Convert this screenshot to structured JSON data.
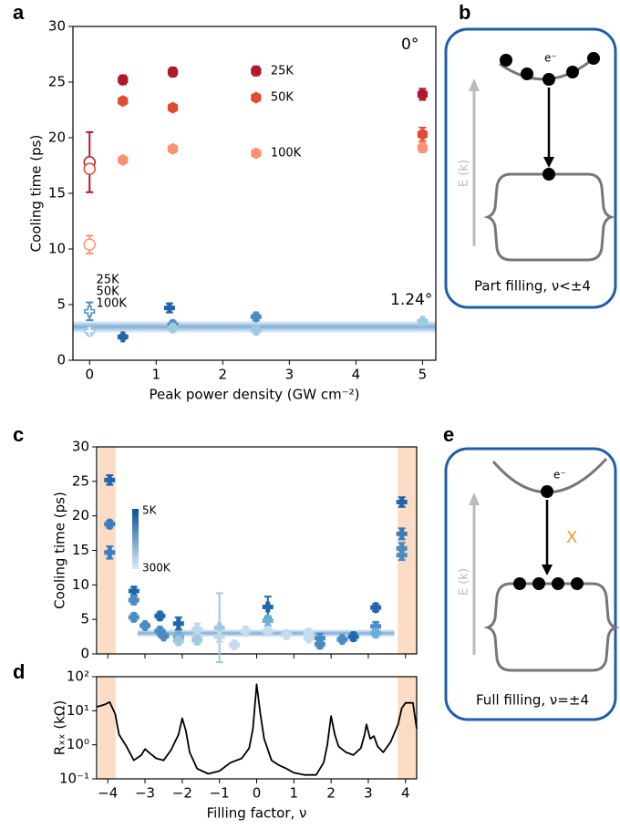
{
  "chart_data": [
    {
      "type": "scatter",
      "panel_label": "a",
      "xlabel": "Peak power density (GW cm⁻²)",
      "ylabel": "Cooling time (ps)",
      "xlim": [
        -0.25,
        5.2
      ],
      "ylim": [
        0,
        30
      ],
      "xticks": [
        0,
        1,
        2,
        3,
        4,
        5
      ],
      "yticks": [
        0,
        5,
        10,
        15,
        20,
        25,
        30
      ],
      "annotations": [
        {
          "text": "0°",
          "color": "#b2182b"
        },
        {
          "text": "1.24°",
          "color": "#2166ac"
        }
      ],
      "band": {
        "range": [
          2.4,
          3.6
        ],
        "color": "#6a9fd0"
      },
      "series": [
        {
          "name": "25K",
          "color": "#b2182b",
          "marker": "hexagon",
          "x": [
            0,
            0.5,
            1.25,
            2.5,
            5
          ],
          "values": [
            17.8,
            25.2,
            25.9,
            26.0,
            23.9
          ],
          "errors": [
            2.7,
            0.4,
            0.4,
            0.4,
            0.5
          ],
          "hollow": [
            true,
            false,
            false,
            false,
            false
          ]
        },
        {
          "name": "50K",
          "color": "#e34a33",
          "marker": "hexagon",
          "x": [
            0,
            0.5,
            1.25,
            2.5,
            5
          ],
          "values": [
            17.2,
            23.3,
            22.7,
            23.6,
            20.3
          ],
          "errors": [
            0.4,
            0.3,
            0.3,
            0.3,
            0.6
          ],
          "hollow": [
            true,
            false,
            false,
            false,
            false
          ]
        },
        {
          "name": "100K",
          "color": "#fc9272",
          "marker": "hexagon",
          "x": [
            0,
            0.5,
            1.25,
            2.5,
            5
          ],
          "values": [
            10.4,
            18.0,
            19.0,
            18.6,
            19.1
          ],
          "errors": [
            0.8,
            0.3,
            0.3,
            0.3,
            0.4
          ],
          "hollow": [
            true,
            false,
            false,
            false,
            false
          ]
        },
        {
          "name": "25K",
          "color": "#2166ac",
          "marker": "plus",
          "x": [
            0.5,
            1.2
          ],
          "values": [
            2.1,
            4.7
          ],
          "errors": [
            0.2,
            0.4
          ],
          "hollow": [
            false,
            false
          ]
        },
        {
          "name": "50K",
          "color": "#4a8bc4",
          "marker": "plus",
          "x": [
            0,
            1.25,
            2.5
          ],
          "values": [
            4.4,
            3.2,
            3.9
          ],
          "errors": [
            0.8,
            0.3,
            0.3
          ],
          "hollow": [
            true,
            false,
            false
          ]
        },
        {
          "name": "100K",
          "color": "#9ecae1",
          "marker": "plus",
          "x": [
            0,
            1.25,
            2.5,
            5
          ],
          "values": [
            2.6,
            2.9,
            2.7,
            3.5
          ],
          "errors": [
            0.3,
            0.3,
            0.3,
            0.2
          ],
          "hollow": [
            true,
            false,
            false,
            false
          ]
        }
      ]
    },
    {
      "type": "scatter",
      "panel_label": "c",
      "ylabel": "Cooling time (ps)",
      "xlim": [
        -4.3,
        4.3
      ],
      "ylim": [
        0,
        30
      ],
      "xticks": [
        -4,
        -3,
        -2,
        -1,
        0,
        1,
        2,
        3,
        4
      ],
      "show_xtick_labels": false,
      "yticks": [
        0,
        5,
        10,
        15,
        20,
        25,
        30
      ],
      "shaded_regions": [
        [
          -4.25,
          -3.79
        ],
        [
          3.79,
          4.29
        ]
      ],
      "shade_color": "#fcdcc4",
      "band": {
        "range": [
          2.4,
          3.6
        ],
        "x": [
          -3.2,
          3.7
        ],
        "color": "#6a9fd0"
      },
      "colorbar": {
        "labels": [
          "5K",
          "300K"
        ],
        "colors": [
          "#08519c",
          "#deebf7"
        ]
      },
      "series": [
        {
          "marker": "plus",
          "x": [
            -3.95,
            -3.95,
            -3.95,
            -3.3,
            -3.3,
            -3.3,
            -3.0,
            -2.6,
            -2.6,
            -2.5,
            -2.1,
            -2.1,
            -2.1,
            -1.6,
            -1.6,
            -1.6,
            -1.0,
            -1.0,
            -0.6,
            -0.3,
            0.3,
            0.3,
            0.3,
            0.8,
            1.4,
            1.4,
            1.7,
            1.7,
            2.3,
            2.6,
            3.2,
            3.2,
            3.2,
            3.9,
            3.9,
            3.9,
            3.9
          ],
          "values": [
            25.2,
            18.8,
            14.7,
            9.1,
            7.8,
            5.3,
            4.1,
            5.5,
            3.3,
            2.6,
            4.4,
            2.5,
            1.9,
            3.6,
            2.6,
            2.0,
            3.8,
            2.5,
            1.3,
            3.3,
            6.8,
            4.8,
            3.3,
            2.8,
            3.0,
            2.3,
            2.3,
            1.4,
            2.1,
            2.5,
            6.7,
            4.0,
            3.0,
            22.0,
            17.4,
            15.3,
            14.3
          ],
          "errors": [
            0.7,
            0.5,
            0.9,
            0.6,
            0.5,
            0.5,
            0.4,
            0.5,
            0.5,
            0.4,
            0.9,
            0.6,
            0.5,
            0.8,
            0.5,
            0.5,
            5.0,
            0.8,
            0.4,
            0.6,
            1.5,
            0.7,
            0.5,
            0.5,
            0.6,
            0.4,
            0.6,
            0.5,
            0.4,
            0.5,
            0.5,
            0.6,
            0.5,
            0.7,
            0.8,
            0.8,
            0.7
          ],
          "point_colors": [
            "#2166ac",
            "#3a7dbd",
            "#3a7dbd",
            "#2166ac",
            "#4a8bc4",
            "#4a8bc4",
            "#4a8bc4",
            "#2166ac",
            "#4a8bc4",
            "#4a8bc4",
            "#2166ac",
            "#6baed6",
            "#9ecae1",
            "#bdd7ee",
            "#bdd7ee",
            "#9ecae1",
            "#9ecae1",
            "#bdd7ee",
            "#c6dbef",
            "#c6dbef",
            "#2166ac",
            "#6baed6",
            "#c6dbef",
            "#c6dbef",
            "#c6dbef",
            "#c6dbef",
            "#4a8bc4",
            "#4a8bc4",
            "#4a8bc4",
            "#2166ac",
            "#2166ac",
            "#4a8bc4",
            "#6baed6",
            "#2166ac",
            "#3a7dbd",
            "#4a8bc4",
            "#4a8bc4"
          ]
        }
      ]
    },
    {
      "type": "line",
      "panel_label": "d",
      "xlabel": "Filling factor, ν",
      "ylabel": "Rₓₓ (kΩ)",
      "log_y": true,
      "color": "#000000",
      "xlim": [
        -4.3,
        4.3
      ],
      "ylim": [
        0.1,
        100
      ],
      "xticks": [
        {
          "value": -4,
          "label": "−4"
        },
        {
          "value": -3,
          "label": "−3"
        },
        {
          "value": -2,
          "label": "−2"
        },
        {
          "value": -1,
          "label": "−1"
        },
        0,
        1,
        2,
        3,
        4
      ],
      "yticks": [
        {
          "value": 0.1,
          "label": "10⁻¹"
        },
        {
          "value": 1,
          "label": "10⁰"
        },
        {
          "value": 10,
          "label": "10¹"
        },
        {
          "value": 100,
          "label": "10²"
        }
      ],
      "shaded_regions": [
        [
          -4.25,
          -3.79
        ],
        [
          3.79,
          4.29
        ]
      ],
      "shade_color": "#fcdcc4",
      "x": [
        -4.3,
        -4.1,
        -3.95,
        -3.8,
        -3.7,
        -3.5,
        -3.3,
        -3.1,
        -3.0,
        -2.9,
        -2.7,
        -2.5,
        -2.3,
        -2.1,
        -2.0,
        -1.9,
        -1.8,
        -1.6,
        -1.3,
        -1.0,
        -0.7,
        -0.4,
        -0.2,
        -0.1,
        0,
        0.1,
        0.2,
        0.4,
        0.6,
        0.8,
        1.0,
        1.3,
        1.6,
        1.8,
        1.9,
        2.0,
        2.1,
        2.2,
        2.4,
        2.6,
        2.8,
        2.9,
        2.95,
        3.05,
        3.15,
        3.25,
        3.4,
        3.6,
        3.8,
        3.9,
        4.0,
        4.2,
        4.3
      ],
      "values": [
        13,
        15,
        18,
        8,
        2,
        0.9,
        0.35,
        0.5,
        0.75,
        0.6,
        0.4,
        0.35,
        0.7,
        2,
        6,
        2.5,
        0.6,
        0.2,
        0.14,
        0.17,
        0.3,
        0.4,
        0.8,
        3,
        60,
        8,
        1.5,
        0.35,
        0.25,
        0.2,
        0.15,
        0.13,
        0.13,
        0.3,
        1,
        7,
        2,
        0.9,
        0.6,
        0.5,
        0.8,
        2,
        4,
        1.5,
        1.8,
        0.9,
        0.6,
        1.2,
        4,
        12,
        17,
        17,
        3
      ]
    }
  ],
  "diagrams": [
    {
      "label": "b",
      "electron": "e⁻",
      "energy_axis": "E (k)",
      "caption": "Part filling, ν<±4"
    },
    {
      "label": "e",
      "electron": "e⁻",
      "energy_axis": "E (k)",
      "blocked": "X",
      "caption": "Full filling, ν=±4"
    }
  ]
}
